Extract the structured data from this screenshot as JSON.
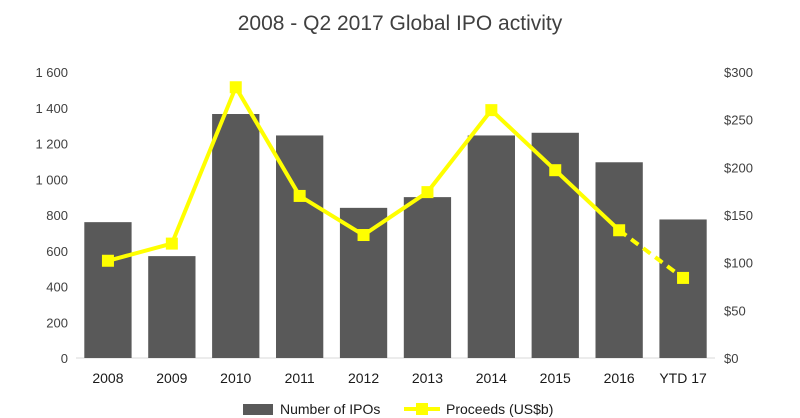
{
  "chart_data": {
    "type": "bar",
    "title": "2008 - Q2 2017 Global IPO activity",
    "categories": [
      "2008",
      "2009",
      "2010",
      "2011",
      "2012",
      "2013",
      "2014",
      "2015",
      "2016",
      "YTD 17"
    ],
    "series": [
      {
        "name": "Number of IPOs",
        "type": "bar",
        "axis": "left",
        "color": "#595959",
        "values": [
          760,
          570,
          1365,
          1245,
          840,
          900,
          1245,
          1260,
          1095,
          775
        ]
      },
      {
        "name": "Proceeds (US$b)",
        "type": "line",
        "axis": "right",
        "color": "#FFFF00",
        "values": [
          102,
          120,
          284,
          170,
          129,
          174,
          260,
          197,
          134,
          84
        ],
        "dashed_last_segment": true
      }
    ],
    "y_left": {
      "min": 0,
      "max": 1600,
      "ticks": [
        0,
        200,
        400,
        600,
        800,
        1000,
        1200,
        1400,
        1600
      ],
      "tick_labels": [
        "0",
        "200",
        "400",
        "600",
        "800",
        "1 000",
        "1 200",
        "1 400",
        "1 600"
      ]
    },
    "y_right": {
      "min": 0,
      "max": 300,
      "ticks": [
        0,
        50,
        100,
        150,
        200,
        250,
        300
      ],
      "tick_labels": [
        "$0",
        "$50",
        "$100",
        "$150",
        "$200",
        "$250",
        "$300"
      ]
    },
    "grid": false,
    "legend": "bottom"
  }
}
